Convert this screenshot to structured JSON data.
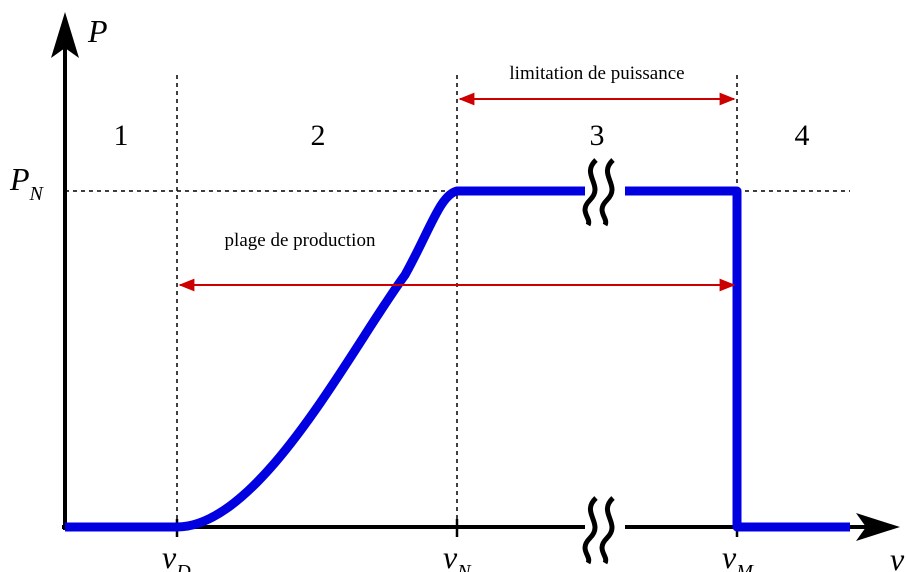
{
  "axes": {
    "y_label": "P",
    "x_label": "v"
  },
  "levels": {
    "rated_power": {
      "main": "P",
      "sub": "N"
    }
  },
  "speeds": [
    {
      "main": "v",
      "sub": "D"
    },
    {
      "main": "v",
      "sub": "N"
    },
    {
      "main": "v",
      "sub": "M"
    }
  ],
  "regions": [
    "1",
    "2",
    "3",
    "4"
  ],
  "annotations": {
    "power_limitation": "limitation de puissance",
    "production_range": "plage de production"
  }
}
